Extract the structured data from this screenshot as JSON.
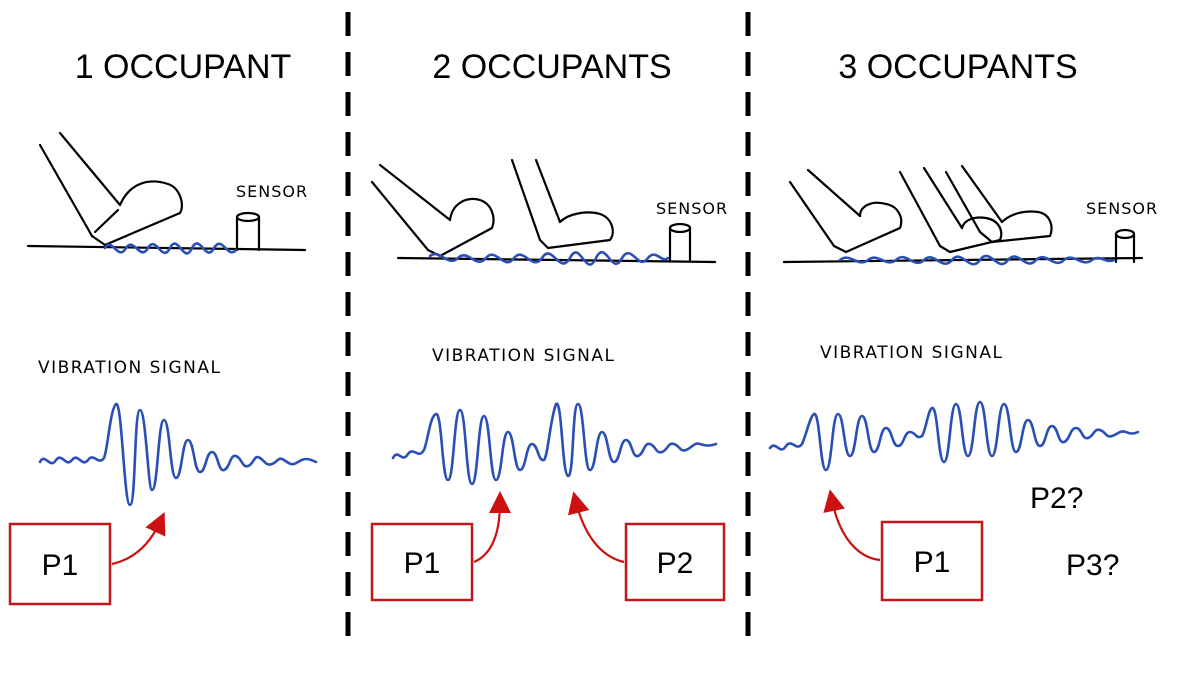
{
  "panels": [
    {
      "title": "1 OCCUPANT",
      "sensor_label": "SENSOR",
      "signal_label": "VIBRATION SIGNAL",
      "person_labels": [
        "P1"
      ],
      "uncertain_labels": []
    },
    {
      "title": "2 OCCUPANTS",
      "sensor_label": "SENSOR",
      "signal_label": "VIBRATION SIGNAL",
      "person_labels": [
        "P1",
        "P2"
      ],
      "uncertain_labels": []
    },
    {
      "title": "3 OCCUPANTS",
      "sensor_label": "SENSOR",
      "signal_label": "VIBRATION SIGNAL",
      "person_labels": [
        "P1"
      ],
      "uncertain_labels": [
        "P2?",
        "P3?"
      ]
    }
  ],
  "colors": {
    "wave": "#2a4fb5",
    "arrow": "#cc1111",
    "box_border": "#c0161c",
    "ink": "#000000"
  }
}
